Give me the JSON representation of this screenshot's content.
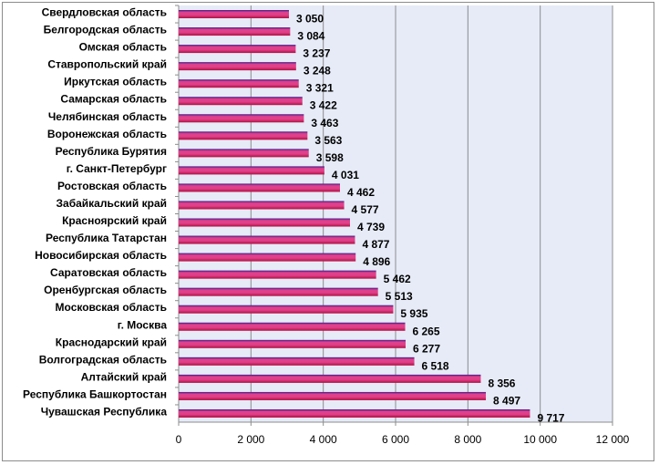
{
  "chart_data": {
    "type": "bar",
    "orientation": "horizontal",
    "categories": [
      "Свердловская область",
      "Белгородская область",
      "Омская область",
      "Ставропольский край",
      "Иркутская область",
      "Самарская область",
      "Челябинская область",
      "Воронежская область",
      "Республика Бурятия",
      "г. Санкт-Петербург",
      "Ростовская область",
      "Забайкальский край",
      "Красноярский край",
      "Республика Татарстан",
      "Новосибирская область",
      "Саратовская область",
      "Оренбургская область",
      "Московская область",
      "г. Москва",
      "Краснодарский край",
      "Волгоградская область",
      "Алтайский край",
      "Республика Башкортостан",
      "Чувашская Республика"
    ],
    "values": [
      3050,
      3084,
      3237,
      3248,
      3321,
      3422,
      3463,
      3563,
      3598,
      4031,
      4462,
      4577,
      4739,
      4877,
      4896,
      5462,
      5513,
      5935,
      6265,
      6277,
      6518,
      8356,
      8497,
      9717
    ],
    "value_labels": [
      "3 050",
      "3 084",
      "3 237",
      "3 248",
      "3 321",
      "3 422",
      "3 463",
      "3 563",
      "3 598",
      "4 031",
      "4 462",
      "4 577",
      "4 739",
      "4 877",
      "4 896",
      "5 462",
      "5 513",
      "5 935",
      "6 265",
      "6 277",
      "6 518",
      "8 356",
      "8 497",
      "9 717"
    ],
    "xlim": [
      0,
      12000
    ],
    "xticks": [
      0,
      2000,
      4000,
      6000,
      8000,
      10000,
      12000
    ],
    "xtick_labels": [
      "0",
      "2 000",
      "4 000",
      "6 000",
      "8 000",
      "10 000",
      "12 000"
    ],
    "title": "",
    "xlabel": "",
    "ylabel": "",
    "grid": "vertical major gridlines",
    "legend": "none",
    "colors": {
      "plot_background": "#e6ebf7",
      "bar_top": "#3a1a8c",
      "bar_middle": "#e0408a",
      "bar_bottom": "#b01040",
      "gridline": "#8c8c8c",
      "axis": "#8c8c8c"
    }
  }
}
